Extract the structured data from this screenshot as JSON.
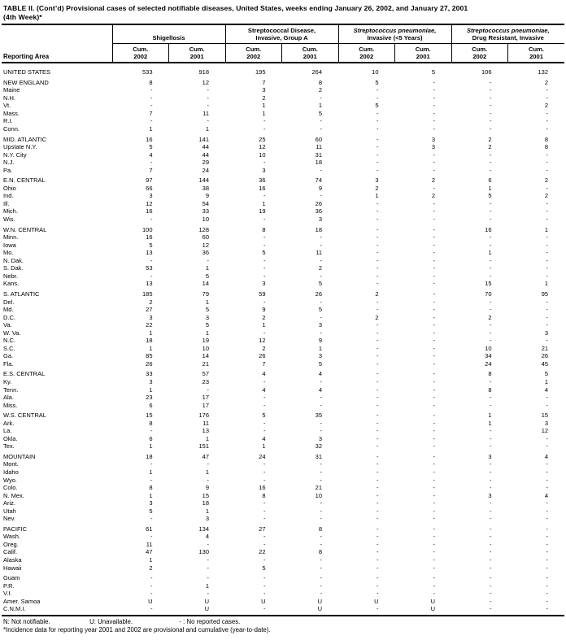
{
  "title": {
    "line1": "TABLE II. (Cont’d) Provisional cases of selected notifiable diseases, United States, weeks ending January 26, 2002, and January 27, 2001",
    "line2": "(4th Week)*"
  },
  "header": {
    "reporting_area_label": "Reporting Area",
    "cum_label": "Cum.",
    "years": [
      "2002",
      "2001"
    ],
    "groups": [
      {
        "line1": "",
        "line2": "Shigellosis"
      },
      {
        "line1": "Streptococcal Disease,",
        "line2": "Invasive, Group A"
      },
      {
        "line1": "Streptococcus pneumoniae,",
        "line2": "Invasive (<5 Years)"
      },
      {
        "line1": "Streptococcus pneumoniae,",
        "line2": "Drug Resistant, Invasive"
      }
    ]
  },
  "rows": [
    {
      "area": "UNITED STATES",
      "values": [
        "533",
        "918",
        "195",
        "264",
        "10",
        "5",
        "106",
        "132"
      ],
      "gap_before": false
    },
    {
      "area": "NEW ENGLAND",
      "values": [
        "8",
        "12",
        "7",
        "8",
        "5",
        "-",
        "-",
        "2"
      ],
      "gap_before": true
    },
    {
      "area": "Maine",
      "values": [
        "-",
        "-",
        "3",
        "2",
        "-",
        "-",
        "-",
        "-"
      ],
      "gap_before": false
    },
    {
      "area": "N.H.",
      "values": [
        "-",
        "-",
        "2",
        "-",
        "-",
        "-",
        "-",
        "-"
      ],
      "gap_before": false
    },
    {
      "area": "Vt.",
      "values": [
        "-",
        "-",
        "1",
        "1",
        "5",
        "-",
        "-",
        "2"
      ],
      "gap_before": false
    },
    {
      "area": "Mass.",
      "values": [
        "7",
        "11",
        "1",
        "5",
        "-",
        "-",
        "-",
        "-"
      ],
      "gap_before": false
    },
    {
      "area": "R.I.",
      "values": [
        "-",
        "-",
        "-",
        "-",
        "-",
        "-",
        "-",
        "-"
      ],
      "gap_before": false
    },
    {
      "area": "Conn.",
      "values": [
        "1",
        "1",
        "-",
        "-",
        "-",
        "-",
        "-",
        "-"
      ],
      "gap_before": false
    },
    {
      "area": "MID. ATLANTIC",
      "values": [
        "16",
        "141",
        "25",
        "60",
        "-",
        "3",
        "2",
        "8"
      ],
      "gap_before": true
    },
    {
      "area": "Upstate N.Y.",
      "values": [
        "5",
        "44",
        "12",
        "11",
        "-",
        "3",
        "2",
        "8"
      ],
      "gap_before": false
    },
    {
      "area": "N.Y. City",
      "values": [
        "4",
        "44",
        "10",
        "31",
        "-",
        "-",
        "-",
        "-"
      ],
      "gap_before": false
    },
    {
      "area": "N.J.",
      "values": [
        "-",
        "29",
        "-",
        "18",
        "-",
        "-",
        "-",
        "-"
      ],
      "gap_before": false
    },
    {
      "area": "Pa.",
      "values": [
        "7",
        "24",
        "3",
        "-",
        "-",
        "-",
        "-",
        "-"
      ],
      "gap_before": false
    },
    {
      "area": "E.N. CENTRAL",
      "values": [
        "97",
        "144",
        "36",
        "74",
        "3",
        "2",
        "6",
        "2"
      ],
      "gap_before": true
    },
    {
      "area": "Ohio",
      "values": [
        "66",
        "38",
        "16",
        "9",
        "2",
        "-",
        "1",
        "-"
      ],
      "gap_before": false
    },
    {
      "area": "Ind.",
      "values": [
        "3",
        "9",
        "-",
        "-",
        "1",
        "2",
        "5",
        "2"
      ],
      "gap_before": false
    },
    {
      "area": "Ill.",
      "values": [
        "12",
        "54",
        "1",
        "26",
        "-",
        "-",
        "-",
        "-"
      ],
      "gap_before": false
    },
    {
      "area": "Mich.",
      "values": [
        "16",
        "33",
        "19",
        "36",
        "-",
        "-",
        "-",
        "-"
      ],
      "gap_before": false
    },
    {
      "area": "Wis.",
      "values": [
        "-",
        "10",
        "-",
        "3",
        "-",
        "-",
        "-",
        "-"
      ],
      "gap_before": false
    },
    {
      "area": "W.N. CENTRAL",
      "values": [
        "100",
        "128",
        "8",
        "18",
        "-",
        "-",
        "16",
        "1"
      ],
      "gap_before": true
    },
    {
      "area": "Minn.",
      "values": [
        "16",
        "60",
        "-",
        "-",
        "-",
        "-",
        "-",
        "-"
      ],
      "gap_before": false
    },
    {
      "area": "Iowa",
      "values": [
        "5",
        "12",
        "-",
        "-",
        "-",
        "-",
        "-",
        "-"
      ],
      "gap_before": false
    },
    {
      "area": "Mo.",
      "values": [
        "13",
        "36",
        "5",
        "11",
        "-",
        "-",
        "1",
        "-"
      ],
      "gap_before": false
    },
    {
      "area": "N. Dak.",
      "values": [
        "-",
        "-",
        "-",
        "-",
        "-",
        "-",
        "-",
        "-"
      ],
      "gap_before": false
    },
    {
      "area": "S. Dak.",
      "values": [
        "53",
        "1",
        "-",
        "2",
        "-",
        "-",
        "-",
        "-"
      ],
      "gap_before": false
    },
    {
      "area": "Nebr.",
      "values": [
        "-",
        "5",
        "-",
        "-",
        "-",
        "-",
        "-",
        "-"
      ],
      "gap_before": false
    },
    {
      "area": "Kans.",
      "values": [
        "13",
        "14",
        "3",
        "5",
        "-",
        "-",
        "15",
        "1"
      ],
      "gap_before": false
    },
    {
      "area": "S. ATLANTIC",
      "values": [
        "185",
        "79",
        "59",
        "26",
        "2",
        "-",
        "70",
        "95"
      ],
      "gap_before": true
    },
    {
      "area": "Del.",
      "values": [
        "2",
        "1",
        "-",
        "-",
        "-",
        "-",
        "-",
        "-"
      ],
      "gap_before": false
    },
    {
      "area": "Md.",
      "values": [
        "27",
        "5",
        "9",
        "5",
        "-",
        "-",
        "-",
        "-"
      ],
      "gap_before": false
    },
    {
      "area": "D.C.",
      "values": [
        "3",
        "3",
        "2",
        "-",
        "2",
        "-",
        "2",
        "-"
      ],
      "gap_before": false
    },
    {
      "area": "Va.",
      "values": [
        "22",
        "5",
        "1",
        "3",
        "-",
        "-",
        "-",
        "-"
      ],
      "gap_before": false
    },
    {
      "area": "W. Va.",
      "values": [
        "1",
        "1",
        "-",
        "-",
        "-",
        "-",
        "-",
        "3"
      ],
      "gap_before": false
    },
    {
      "area": "N.C.",
      "values": [
        "18",
        "19",
        "12",
        "9",
        "-",
        "-",
        "-",
        "-"
      ],
      "gap_before": false
    },
    {
      "area": "S.C.",
      "values": [
        "1",
        "10",
        "2",
        "1",
        "-",
        "-",
        "10",
        "21"
      ],
      "gap_before": false
    },
    {
      "area": "Ga.",
      "values": [
        "85",
        "14",
        "26",
        "3",
        "-",
        "-",
        "34",
        "26"
      ],
      "gap_before": false
    },
    {
      "area": "Fla.",
      "values": [
        "26",
        "21",
        "7",
        "5",
        "-",
        "-",
        "24",
        "45"
      ],
      "gap_before": false
    },
    {
      "area": "E.S. CENTRAL",
      "values": [
        "33",
        "57",
        "4",
        "4",
        "-",
        "-",
        "8",
        "5"
      ],
      "gap_before": true
    },
    {
      "area": "Ky.",
      "values": [
        "3",
        "23",
        "-",
        "-",
        "-",
        "-",
        "-",
        "1"
      ],
      "gap_before": false
    },
    {
      "area": "Tenn.",
      "values": [
        "1",
        "-",
        "4",
        "4",
        "-",
        "-",
        "8",
        "4"
      ],
      "gap_before": false
    },
    {
      "area": "Ala.",
      "values": [
        "23",
        "17",
        "-",
        "-",
        "-",
        "-",
        "-",
        "-"
      ],
      "gap_before": false
    },
    {
      "area": "Miss.",
      "values": [
        "6",
        "17",
        "-",
        "-",
        "-",
        "-",
        "-",
        "-"
      ],
      "gap_before": false
    },
    {
      "area": "W.S. CENTRAL",
      "values": [
        "15",
        "176",
        "5",
        "35",
        "-",
        "-",
        "1",
        "15"
      ],
      "gap_before": true
    },
    {
      "area": "Ark.",
      "values": [
        "8",
        "11",
        "-",
        "-",
        "-",
        "-",
        "1",
        "3"
      ],
      "gap_before": false
    },
    {
      "area": "La.",
      "values": [
        "-",
        "13",
        "-",
        "-",
        "-",
        "-",
        "-",
        "12"
      ],
      "gap_before": false
    },
    {
      "area": "Okla.",
      "values": [
        "6",
        "1",
        "4",
        "3",
        "-",
        "-",
        "-",
        "-"
      ],
      "gap_before": false
    },
    {
      "area": "Tex.",
      "values": [
        "1",
        "151",
        "1",
        "32",
        "-",
        "-",
        "-",
        "-"
      ],
      "gap_before": false
    },
    {
      "area": "MOUNTAIN",
      "values": [
        "18",
        "47",
        "24",
        "31",
        "-",
        "-",
        "3",
        "4"
      ],
      "gap_before": true
    },
    {
      "area": "Mont.",
      "values": [
        "-",
        "-",
        "-",
        "-",
        "-",
        "-",
        "-",
        "-"
      ],
      "gap_before": false
    },
    {
      "area": "Idaho",
      "values": [
        "1",
        "1",
        "-",
        "-",
        "-",
        "-",
        "-",
        "-"
      ],
      "gap_before": false
    },
    {
      "area": "Wyo.",
      "values": [
        "-",
        "-",
        "-",
        "-",
        "-",
        "-",
        "-",
        "-"
      ],
      "gap_before": false
    },
    {
      "area": "Colo.",
      "values": [
        "8",
        "9",
        "16",
        "21",
        "-",
        "-",
        "-",
        "-"
      ],
      "gap_before": false
    },
    {
      "area": "N. Mex.",
      "values": [
        "1",
        "15",
        "8",
        "10",
        "-",
        "-",
        "3",
        "4"
      ],
      "gap_before": false
    },
    {
      "area": "Ariz.",
      "values": [
        "3",
        "18",
        "-",
        "-",
        "-",
        "-",
        "-",
        "-"
      ],
      "gap_before": false
    },
    {
      "area": "Utah",
      "values": [
        "5",
        "1",
        "-",
        "-",
        "-",
        "-",
        "-",
        "-"
      ],
      "gap_before": false
    },
    {
      "area": "Nev.",
      "values": [
        "-",
        "3",
        "-",
        "-",
        "-",
        "-",
        "-",
        "-"
      ],
      "gap_before": false
    },
    {
      "area": "PACIFIC",
      "values": [
        "61",
        "134",
        "27",
        "8",
        "-",
        "-",
        "-",
        "-"
      ],
      "gap_before": true
    },
    {
      "area": "Wash.",
      "values": [
        "-",
        "4",
        "-",
        "-",
        "-",
        "-",
        "-",
        "-"
      ],
      "gap_before": false
    },
    {
      "area": "Oreg.",
      "values": [
        "11",
        "-",
        "-",
        "-",
        "-",
        "-",
        "-",
        "-"
      ],
      "gap_before": false
    },
    {
      "area": "Calif.",
      "values": [
        "47",
        "130",
        "22",
        "8",
        "-",
        "-",
        "-",
        "-"
      ],
      "gap_before": false
    },
    {
      "area": "Alaska",
      "values": [
        "1",
        "-",
        "-",
        "-",
        "-",
        "-",
        "-",
        "-"
      ],
      "gap_before": false
    },
    {
      "area": "Hawaii",
      "values": [
        "2",
        "-",
        "5",
        "-",
        "-",
        "-",
        "-",
        "-"
      ],
      "gap_before": false
    },
    {
      "area": "Guam",
      "values": [
        "-",
        "-",
        "-",
        "-",
        "-",
        "-",
        "-",
        "-"
      ],
      "gap_before": true
    },
    {
      "area": "P.R.",
      "values": [
        "-",
        "1",
        "-",
        "-",
        "-",
        "-",
        "-",
        "-"
      ],
      "gap_before": false
    },
    {
      "area": "V.I.",
      "values": [
        "-",
        "-",
        "-",
        "-",
        "-",
        "-",
        "-",
        "-"
      ],
      "gap_before": false
    },
    {
      "area": "Amer. Samoa",
      "values": [
        "U",
        "U",
        "U",
        "U",
        "U",
        "U",
        "-",
        "-"
      ],
      "gap_before": false
    },
    {
      "area": "C.N.M.I.",
      "values": [
        "-",
        "U",
        "-",
        "U",
        "-",
        "U",
        "-",
        "-"
      ],
      "gap_before": false
    }
  ],
  "footnotes": {
    "legend": [
      "N: Not notifiable.",
      "U: Unavailable.",
      "- : No reported cases."
    ],
    "note": "*Incidence data for reporting year 2001 and 2002 are provisional and cumulative (year-to-date)."
  }
}
